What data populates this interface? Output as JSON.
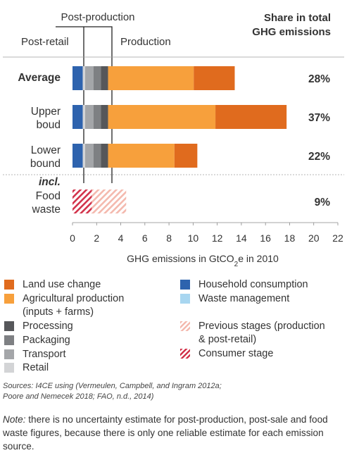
{
  "colors": {
    "land_use_change": "#E06B1E",
    "agricultural_production": "#F7A03C",
    "processing": "#56575A",
    "packaging": "#7E8083",
    "transport": "#A4A6A9",
    "retail": "#D3D4D6",
    "household_consumption": "#2E63AE",
    "waste_management": "#A8D6F0",
    "previous_stages": "#F4B9AE",
    "consumer_stage": "#D2334B",
    "divider": "#222222",
    "separator": "#9E9E9E"
  },
  "header": {
    "post_production": "Post-production",
    "post_retail": "Post-retail",
    "production": "Production",
    "share_title_line1": "Share in total",
    "share_title_line2": "GHG emissions"
  },
  "chart_data": {
    "type": "bar",
    "orientation": "horizontal",
    "stacked": true,
    "xlabel": "GHG emissions in GtCO₂e in 2010",
    "xlim": [
      0,
      22
    ],
    "xticks": [
      0,
      2,
      4,
      6,
      8,
      10,
      12,
      14,
      16,
      18,
      20,
      22
    ],
    "categories": [
      "Average",
      "Upper boud",
      "Lower bound",
      "Food waste"
    ],
    "incl_label": "incl.",
    "series": [
      {
        "name": "Household consumption",
        "color_key": "household_consumption",
        "values": [
          0.85,
          0.85,
          0.85,
          null
        ]
      },
      {
        "name": "Retail",
        "color_key": "retail",
        "values": [
          0.2,
          0.2,
          0.2,
          null
        ]
      },
      {
        "name": "Transport",
        "color_key": "transport",
        "values": [
          0.7,
          0.7,
          0.7,
          null
        ]
      },
      {
        "name": "Packaging",
        "color_key": "packaging",
        "values": [
          0.6,
          0.6,
          0.6,
          null
        ]
      },
      {
        "name": "Processing",
        "color_key": "processing",
        "values": [
          0.6,
          0.6,
          0.6,
          null
        ]
      },
      {
        "name": "Agricultural production",
        "color_key": "agricultural_production",
        "values": [
          7.1,
          8.9,
          5.5,
          null
        ]
      },
      {
        "name": "Land use change",
        "color_key": "land_use_change",
        "values": [
          3.4,
          5.9,
          1.9,
          null
        ]
      },
      {
        "name": "Consumer stage",
        "color_key": "consumer_stage",
        "values": [
          null,
          null,
          null,
          1.6
        ]
      },
      {
        "name": "Previous stages",
        "color_key": "previous_stages",
        "values": [
          null,
          null,
          null,
          2.85
        ]
      }
    ],
    "shares": [
      "28%",
      "37%",
      "22%",
      "9%"
    ]
  },
  "legend": {
    "left": [
      {
        "label": "Land use change",
        "color_key": "land_use_change",
        "pattern": "solid"
      },
      {
        "label": "Agricultural production\n(inputs + farms)",
        "color_key": "agricultural_production",
        "pattern": "solid"
      },
      {
        "label": "Processing",
        "color_key": "processing",
        "pattern": "solid"
      },
      {
        "label": "Packaging",
        "color_key": "packaging",
        "pattern": "solid"
      },
      {
        "label": "Transport",
        "color_key": "transport",
        "pattern": "solid"
      },
      {
        "label": "Retail",
        "color_key": "retail",
        "pattern": "solid"
      }
    ],
    "right": [
      {
        "label": "Household consumption",
        "color_key": "household_consumption",
        "pattern": "solid"
      },
      {
        "label": "Waste management",
        "color_key": "waste_management",
        "pattern": "solid"
      },
      {
        "label": "Previous stages (production\n& post-retail)",
        "color_key": "previous_stages",
        "pattern": "hatch"
      },
      {
        "label": "Consumer stage",
        "color_key": "consumer_stage",
        "pattern": "hatch"
      }
    ]
  },
  "footer": {
    "sources_line1": "Sources: I4CE using (Vermeulen, Campbell, and Ingram 2012a;",
    "sources_line2": "Poore and Nemecek 2018; FAO, n.d., 2014)",
    "note_prefix": "Note:",
    "note_text": " there is no uncertainty estimate for post-production, post-sale and food waste figures, because there is only one reliable estimate for each emission source."
  }
}
